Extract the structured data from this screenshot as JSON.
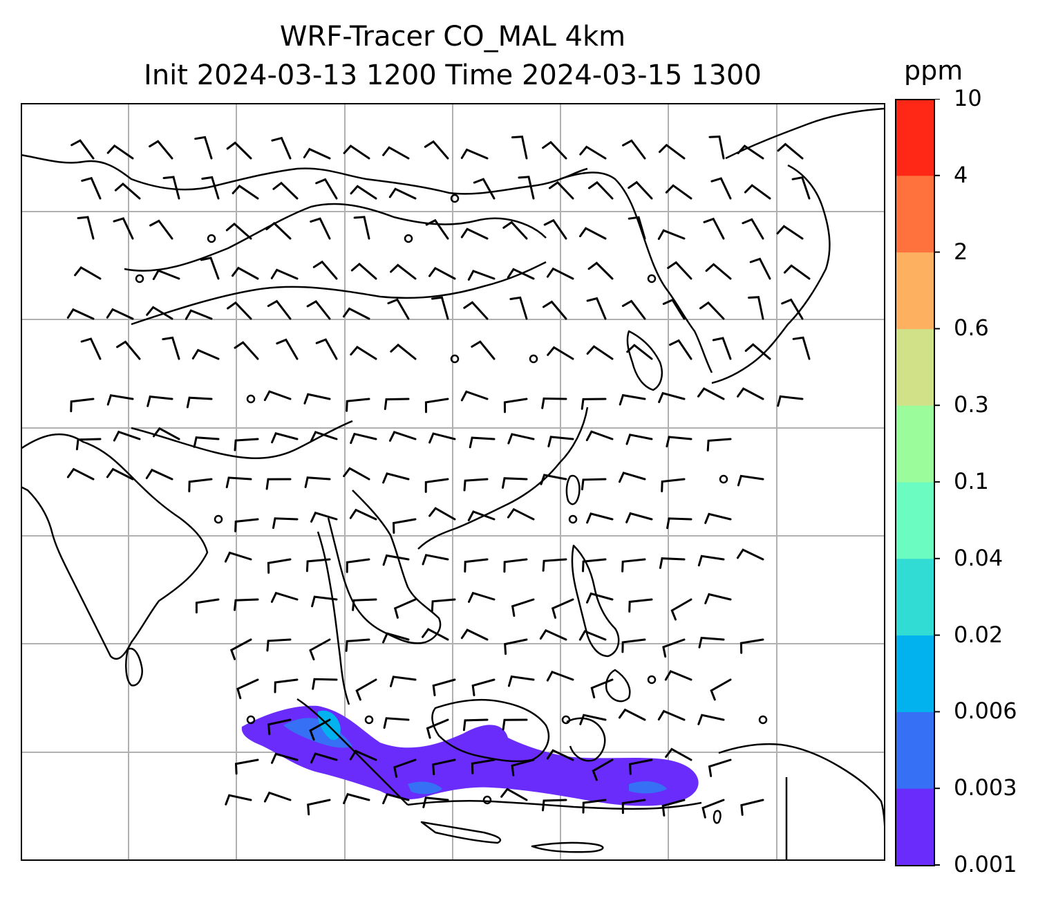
{
  "title": {
    "line1": "WRF-Tracer CO_MAL 4km",
    "line2": "Init 2024-03-13 1200 Time 2024-03-15 1300"
  },
  "colorbar": {
    "unit": "ppm",
    "tick_labels": [
      "0.001",
      "0.003",
      "0.006",
      "0.02",
      "0.04",
      "0.1",
      "0.3",
      "0.6",
      "2",
      "4",
      "10"
    ],
    "colors": [
      "#6a2cfb",
      "#3570f5",
      "#02b2ee",
      "#30dcd4",
      "#6afcc1",
      "#9afc9b",
      "#d1e187",
      "#feb061",
      "#ff713d",
      "#ff2816"
    ]
  },
  "map": {
    "gridlines": true,
    "gridline_color": "#b0b0b0",
    "coastline_color": "#000000",
    "variable": "CO_MAL tracer concentration",
    "wind_barbs": true
  }
}
